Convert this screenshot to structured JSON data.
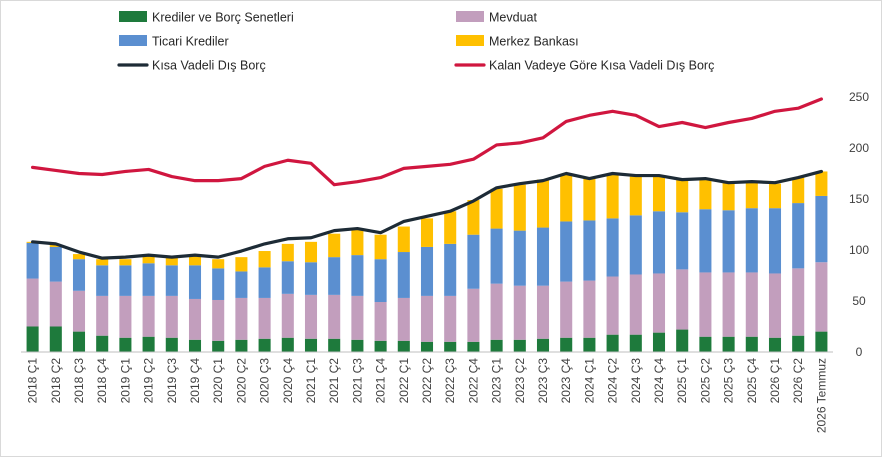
{
  "chart_data": {
    "type": "bar",
    "stacked": true,
    "grid": false,
    "legend_position": "top-left",
    "title": "",
    "xlabel": "",
    "ylabel": "",
    "ylim": [
      0,
      250
    ],
    "yaxis_side": "right",
    "yticks": [
      "0",
      "50",
      "100",
      "150",
      "200",
      "250"
    ],
    "categories": [
      "2018 Ç1",
      "2018 Ç2",
      "2018 Ç3",
      "2018 Ç4",
      "2019 Ç1",
      "2019 Ç2",
      "2019 Ç3",
      "2019 Ç4",
      "2020 Ç1",
      "2020 Ç2",
      "2020 Ç3",
      "2020 Ç4",
      "2021 Ç1",
      "2021 Ç2",
      "2021 Ç3",
      "2021 Ç4",
      "2022 Ç1",
      "2022 Ç2",
      "2022 Ç3",
      "2022 Ç4",
      "2023 Ç1",
      "2023 Ç2",
      "2023 Ç3",
      "2023 Ç4",
      "2024 Ç1",
      "2024 Ç2",
      "2024 Ç3",
      "2024 Ç4",
      "2025 Ç1",
      "2025 Ç2",
      "2025 Ç3",
      "2025 Ç4",
      "2026 Ç1",
      "2026 Ç2",
      "2026 Temmuz"
    ],
    "series": [
      {
        "name": "Krediler ve Borç Senetleri",
        "kind": "bar",
        "color": "#1e7a3c",
        "values": [
          25,
          25,
          20,
          16,
          14,
          15,
          14,
          12,
          11,
          12,
          13,
          14,
          13,
          13,
          12,
          11,
          11,
          10,
          10,
          10,
          12,
          12,
          13,
          14,
          14,
          17,
          17,
          19,
          22,
          15,
          15,
          15,
          14,
          16,
          20
        ]
      },
      {
        "name": "Mevduat",
        "kind": "bar",
        "color": "#c29ebd",
        "values": [
          47,
          44,
          40,
          39,
          41,
          40,
          41,
          40,
          40,
          41,
          40,
          43,
          43,
          43,
          43,
          38,
          42,
          45,
          45,
          52,
          55,
          53,
          52,
          55,
          56,
          57,
          59,
          58,
          59,
          63,
          63,
          63,
          63,
          66,
          68
        ]
      },
      {
        "name": "Ticari Krediler",
        "kind": "bar",
        "color": "#5b8fd0",
        "values": [
          35,
          34,
          31,
          30,
          30,
          32,
          30,
          33,
          31,
          26,
          30,
          32,
          32,
          37,
          40,
          42,
          45,
          48,
          51,
          53,
          54,
          54,
          57,
          59,
          59,
          57,
          58,
          61,
          56,
          62,
          61,
          63,
          64,
          64,
          65
        ]
      },
      {
        "name": "Merkez Bankası",
        "kind": "bar",
        "color": "#ffc000",
        "values": [
          1,
          2,
          5,
          6,
          6,
          7,
          8,
          9,
          9,
          14,
          16,
          17,
          20,
          23,
          25,
          24,
          25,
          28,
          32,
          34,
          39,
          45,
          47,
          46,
          41,
          43,
          38,
          34,
          32,
          29,
          27,
          25,
          24,
          25,
          24
        ]
      },
      {
        "name": "Kısa Vadeli Dış Borç",
        "kind": "line",
        "color": "#1d2b36",
        "values": [
          108,
          106,
          98,
          92,
          93,
          95,
          93,
          95,
          93,
          99,
          106,
          111,
          112,
          119,
          121,
          117,
          128,
          133,
          138,
          148,
          161,
          165,
          168,
          175,
          170,
          175,
          173,
          173,
          169,
          170,
          166,
          167,
          166,
          171,
          177
        ]
      },
      {
        "name": "Kalan Vadeye Göre Kısa Vadeli Dış Borç",
        "kind": "line",
        "color": "#d0163f",
        "values": [
          181,
          178,
          175,
          174,
          177,
          179,
          172,
          168,
          168,
          170,
          182,
          188,
          185,
          164,
          167,
          171,
          180,
          182,
          184,
          189,
          203,
          205,
          210,
          226,
          232,
          236,
          232,
          221,
          225,
          220,
          225,
          229,
          236,
          239,
          248
        ]
      }
    ]
  }
}
